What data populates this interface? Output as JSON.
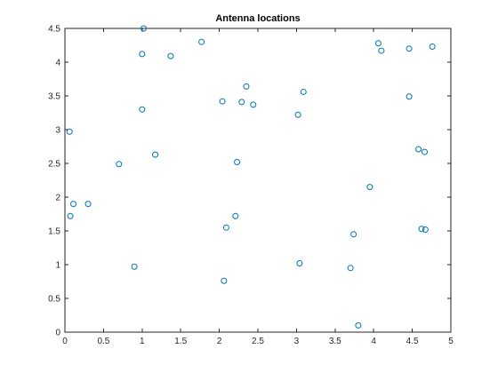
{
  "chart_data": {
    "type": "scatter",
    "title": "Antenna locations",
    "xlabel": "",
    "ylabel": "",
    "xlim": [
      0,
      5
    ],
    "ylim": [
      0,
      4.5
    ],
    "xticks": [
      0,
      0.5,
      1,
      1.5,
      2,
      2.5,
      3,
      3.5,
      4,
      4.5,
      5
    ],
    "yticks": [
      0,
      0.5,
      1,
      1.5,
      2,
      2.5,
      3,
      3.5,
      4,
      4.5
    ],
    "xtick_labels": [
      "0",
      "0.5",
      "1",
      "1.5",
      "2",
      "2.5",
      "3",
      "3.5",
      "4",
      "4.5",
      "5"
    ],
    "ytick_labels": [
      "0",
      "0.5",
      "1",
      "1.5",
      "2",
      "2.5",
      "3",
      "3.5",
      "4",
      "4.5"
    ],
    "grid": false,
    "marker": "circle-open",
    "color": "#0072BD",
    "series": [
      {
        "x": [
          1.02,
          1.0,
          1.37,
          1.77,
          2.04,
          2.29,
          2.35,
          2.44,
          3.02,
          3.09,
          1.0,
          0.06,
          0.7,
          1.17,
          2.23,
          0.11,
          0.07,
          0.3,
          2.21,
          2.09,
          0.9,
          2.06,
          3.04,
          4.06,
          4.1,
          4.46,
          4.76,
          4.46,
          4.58,
          4.66,
          3.95,
          3.74,
          3.7,
          4.62,
          4.67,
          3.8
        ],
        "y": [
          4.5,
          4.12,
          4.09,
          4.3,
          3.42,
          3.41,
          3.64,
          3.37,
          3.22,
          3.56,
          3.3,
          2.97,
          2.49,
          2.63,
          2.52,
          1.9,
          1.72,
          1.9,
          1.72,
          1.55,
          0.97,
          0.76,
          1.02,
          4.28,
          4.17,
          4.2,
          4.23,
          3.49,
          2.71,
          2.67,
          2.15,
          1.45,
          0.95,
          1.53,
          1.52,
          0.1
        ]
      }
    ]
  }
}
